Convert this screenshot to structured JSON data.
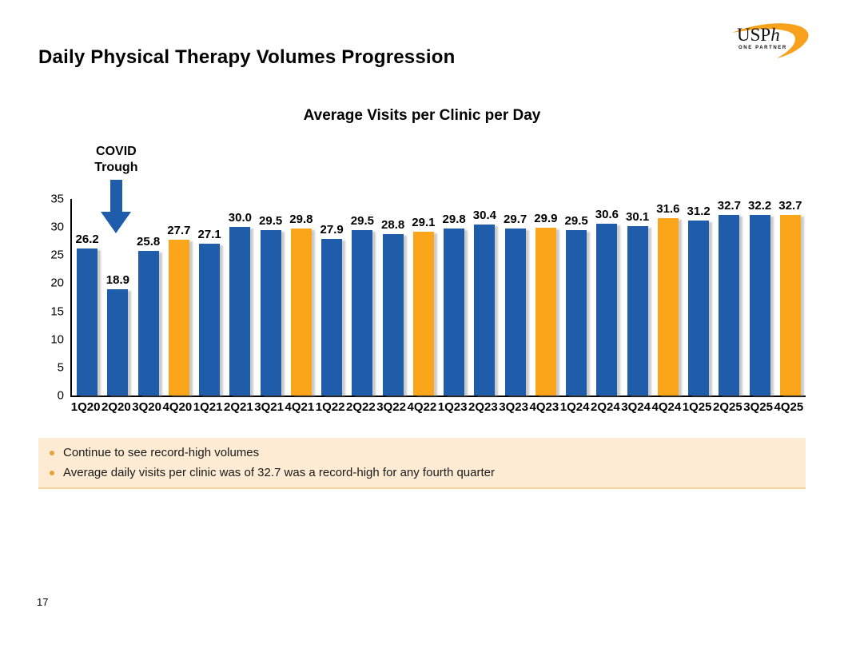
{
  "slide": {
    "title": "Daily Physical Therapy Volumes Progression",
    "page_number": "17"
  },
  "logo": {
    "name": "USPh",
    "text": "USP",
    "italic_letter": "h",
    "tagline": "ONE PARTNER",
    "swoosh_color": "#F7A11D"
  },
  "chart_data": {
    "type": "bar",
    "title": "Average Visits per Clinic per Day",
    "categories": [
      "1Q20",
      "2Q20",
      "3Q20",
      "4Q20",
      "1Q21",
      "2Q21",
      "3Q21",
      "4Q21",
      "1Q22",
      "2Q22",
      "3Q22",
      "4Q22",
      "1Q23",
      "2Q23",
      "3Q23",
      "4Q23",
      "1Q24",
      "2Q24",
      "3Q24",
      "4Q24",
      "1Q25",
      "2Q25",
      "3Q25",
      "4Q25"
    ],
    "values": [
      26.2,
      18.9,
      25.8,
      27.7,
      27.1,
      30.0,
      29.5,
      29.8,
      27.9,
      29.5,
      28.8,
      29.1,
      29.8,
      30.4,
      29.7,
      29.9,
      29.5,
      30.6,
      30.1,
      31.6,
      31.2,
      32.7,
      32.2,
      32.7
    ],
    "highlighted_categories": [
      "4Q20",
      "4Q21",
      "4Q22",
      "4Q23",
      "4Q24",
      "4Q25"
    ],
    "bar_color": "#1F5CA9",
    "highlight_color": "#FAA51A",
    "ylim": [
      0,
      35
    ],
    "yticks": [
      0,
      5,
      10,
      15,
      20,
      25,
      30,
      35
    ],
    "grid": false,
    "legend": false,
    "value_label_format": "one_decimal",
    "annotation": {
      "lines": [
        "COVID",
        "Trough"
      ],
      "target_category": "2Q20",
      "arrow_color": "#1F5CA9"
    }
  },
  "callouts": {
    "background": "#FDEBD3",
    "bullet_color": "#E9A13B",
    "items": [
      "Continue to see record-high volumes",
      "Average daily visits per clinic was of 32.7 was a record-high for any fourth quarter"
    ]
  }
}
